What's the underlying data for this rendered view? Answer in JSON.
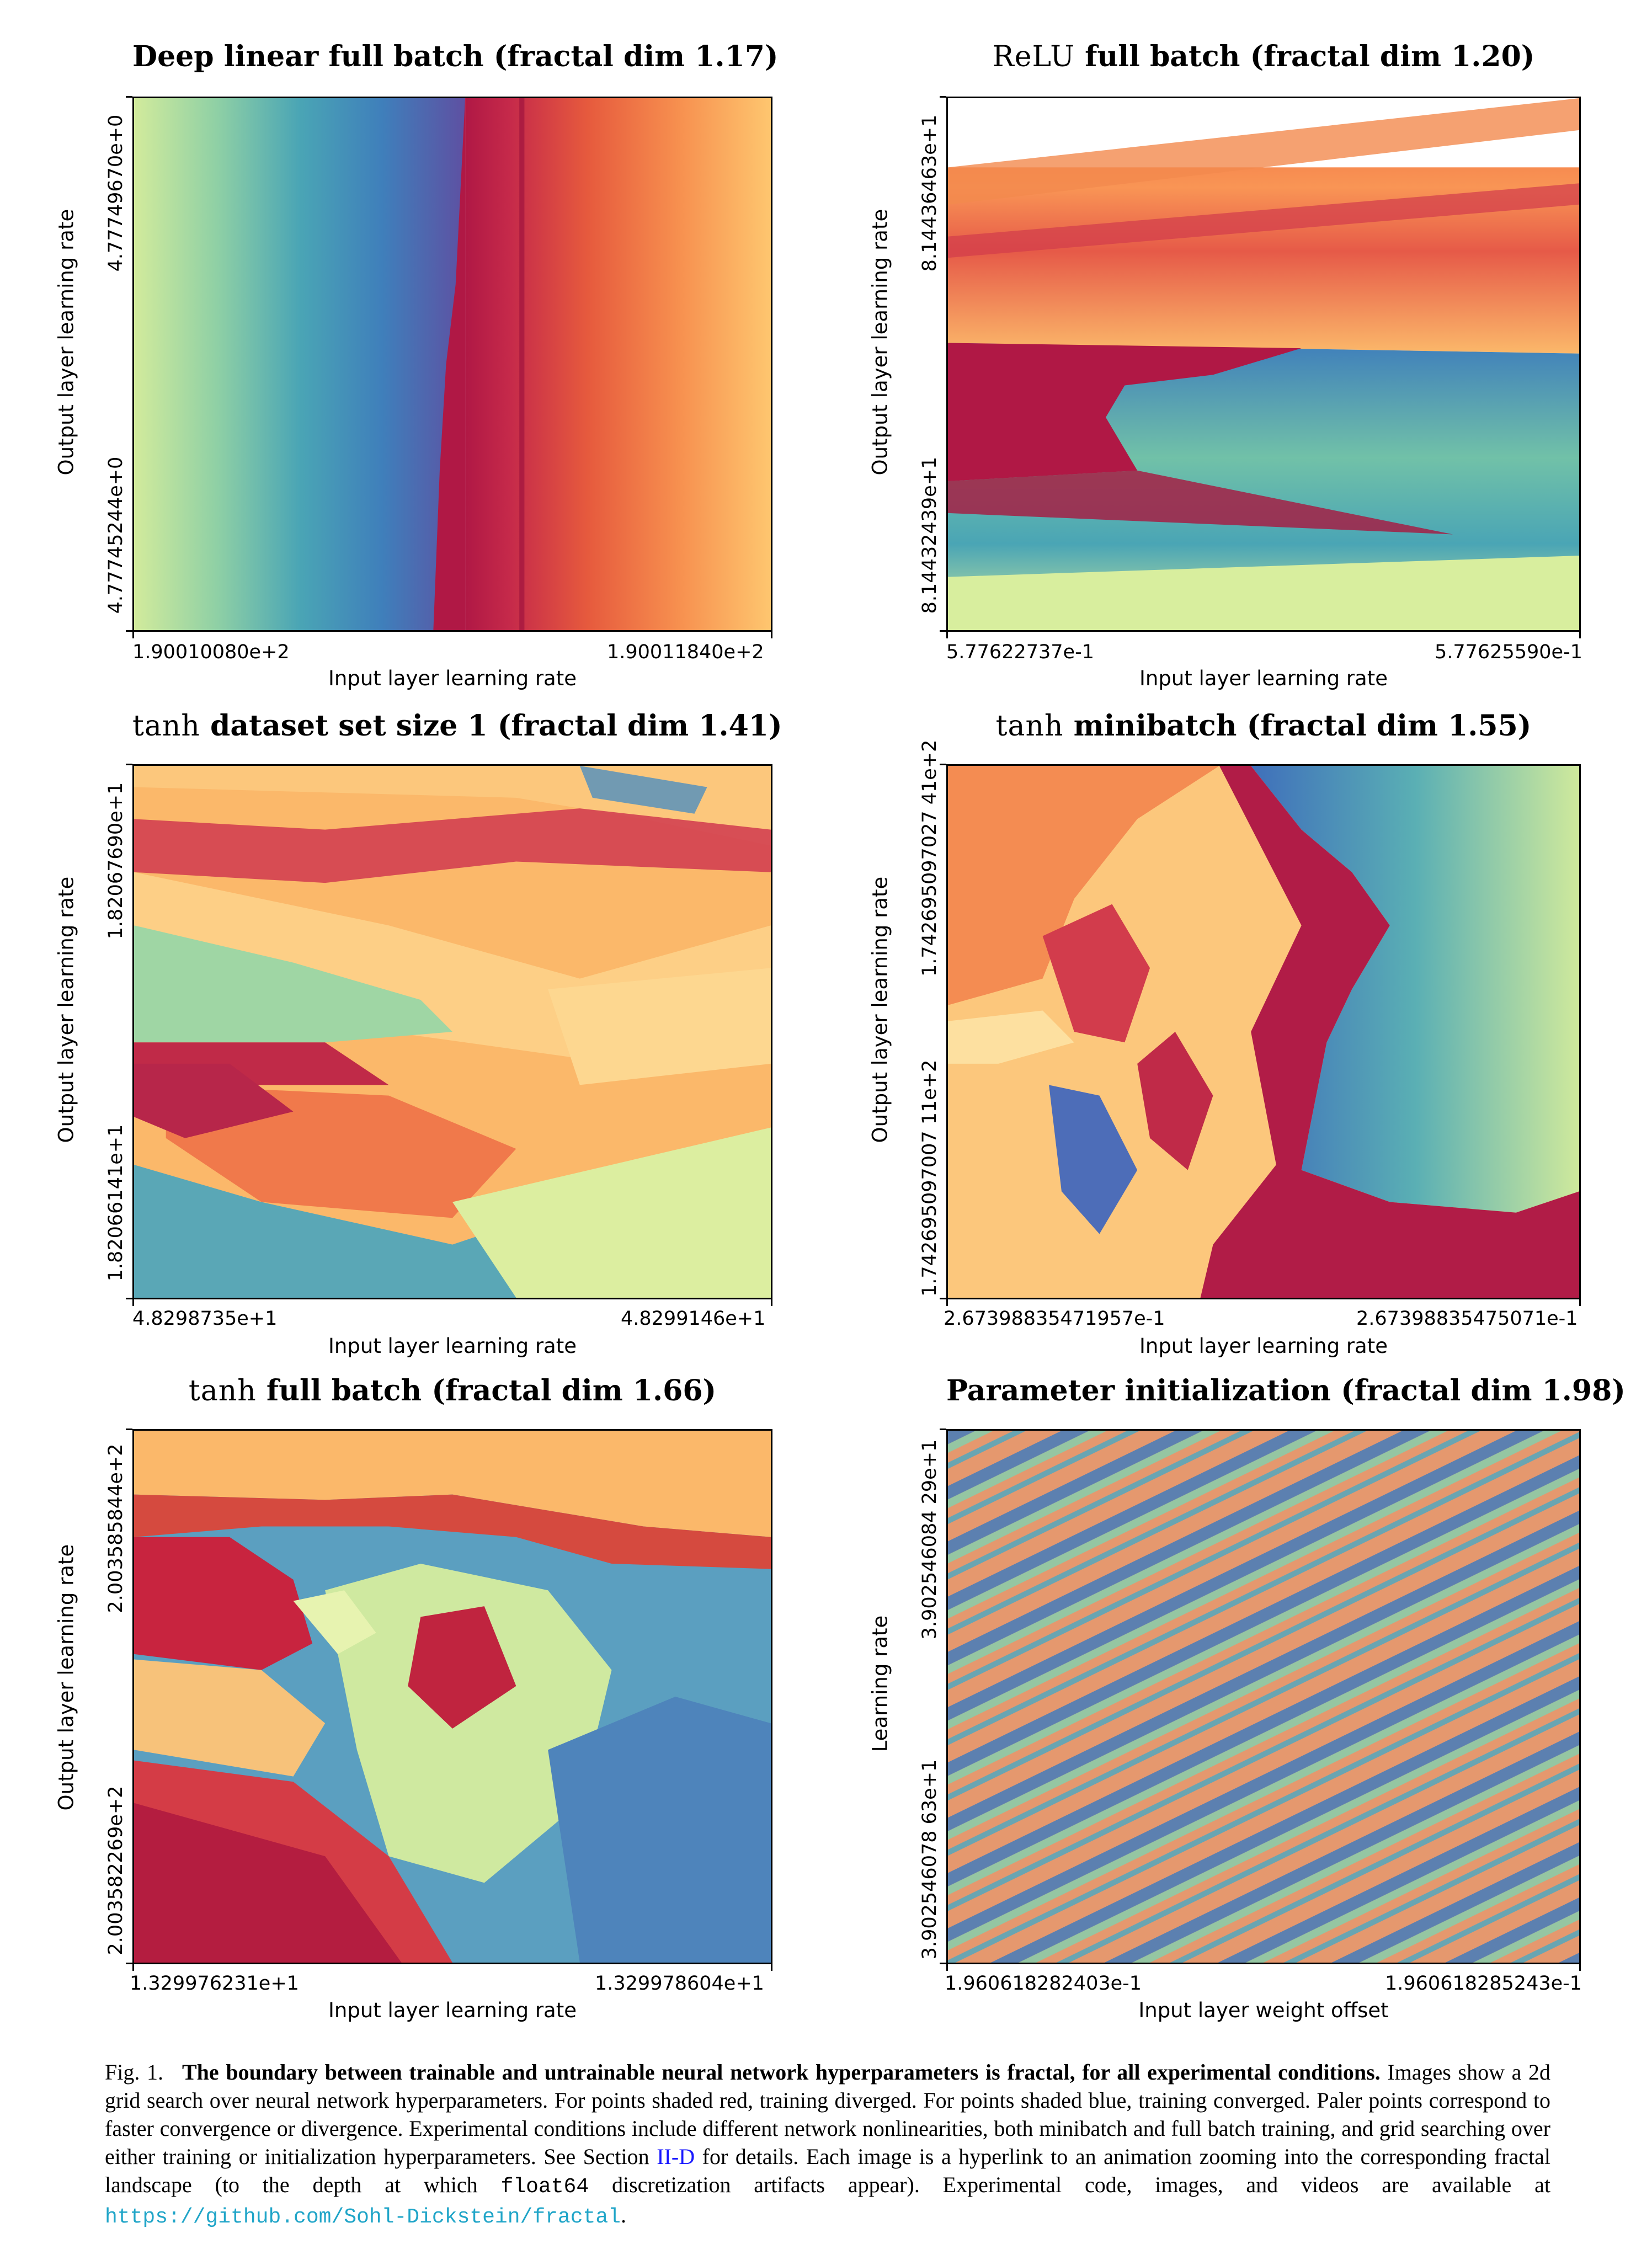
{
  "panels": [
    {
      "title_prefix": "",
      "title": "Deep linear full batch (fractal dim 1.17)",
      "ylabel": "Output layer learning rate",
      "yticks": [
        "4.77749670e+0",
        "4.77745244e+0"
      ],
      "xlabel": "Input layer learning rate",
      "xticks": [
        "1.90010080e+2",
        "1.90011840e+2"
      ]
    },
    {
      "title_prefix": "ReLU",
      "title": " full batch (fractal dim 1.20)",
      "ylabel": "Output layer learning rate",
      "yticks": [
        "8.14436463e+1",
        "8.14432439e+1"
      ],
      "xlabel": "Input layer learning rate",
      "xticks": [
        "5.77622737e-1",
        "5.77625590e-1"
      ]
    },
    {
      "title_prefix": "tanh",
      "title": " dataset set size 1 (fractal dim 1.41)",
      "ylabel": "Output layer learning rate",
      "yticks": [
        "1.82067690e+1",
        "1.82066141e+1"
      ],
      "xlabel": "Input layer learning rate",
      "xticks": [
        "4.8298735e+1",
        "4.8299146e+1"
      ]
    },
    {
      "title_prefix": "tanh",
      "title": " minibatch (fractal dim 1.55)",
      "ylabel": "Output layer learning rate",
      "yticks": [
        "1.742695097027 41e+2",
        "1.742695097007 11e+2"
      ],
      "xlabel": "Input layer learning rate",
      "xticks": [
        "2.67398835471957e-1",
        "2.67398835475071e-1"
      ]
    },
    {
      "title_prefix": "tanh",
      "title": " full batch (fractal dim 1.66)",
      "ylabel": "Output layer learning rate",
      "yticks": [
        "2.003585844e+2",
        "2.003582269e+2"
      ],
      "xlabel": "Input layer learning rate",
      "xticks": [
        "1.329976231e+1",
        "1.329978604e+1"
      ]
    },
    {
      "title_prefix": "",
      "title": "Parameter initialization (fractal dim 1.98)",
      "ylabel": "Learning rate",
      "yticks": [
        "3.902546084 29e+1",
        "3.902546078 63e+1"
      ],
      "xlabel": "Input layer weight offset",
      "xticks": [
        "1.960618282403e-1",
        "1.960618285243e-1"
      ]
    }
  ],
  "caption": {
    "fig_label": "Fig. 1.",
    "bold": "The boundary between trainable and untrainable neural network hyperparameters is fractal, for all experimental conditions.",
    "text1": " Images show a 2d grid search over neural network hyperparameters. For points shaded red, training diverged. For points shaded blue, training converged. Paler points correspond to faster convergence or divergence. Experimental conditions include different network nonlinearities, both minibatch and full batch training, and grid searching over either training or initialization hyperparameters. See Section ",
    "section_link": "II-D",
    "text2": " for details. Each image is a hyperlink to an animation zooming into the corresponding fractal landscape (to the depth at which ",
    "code": "float64",
    "text3": " discretization artifacts appear). Experimental code, images, and videos are available at ",
    "url": "https://github.com/Sohl-Dickstein/fractal",
    "text4": "."
  }
}
